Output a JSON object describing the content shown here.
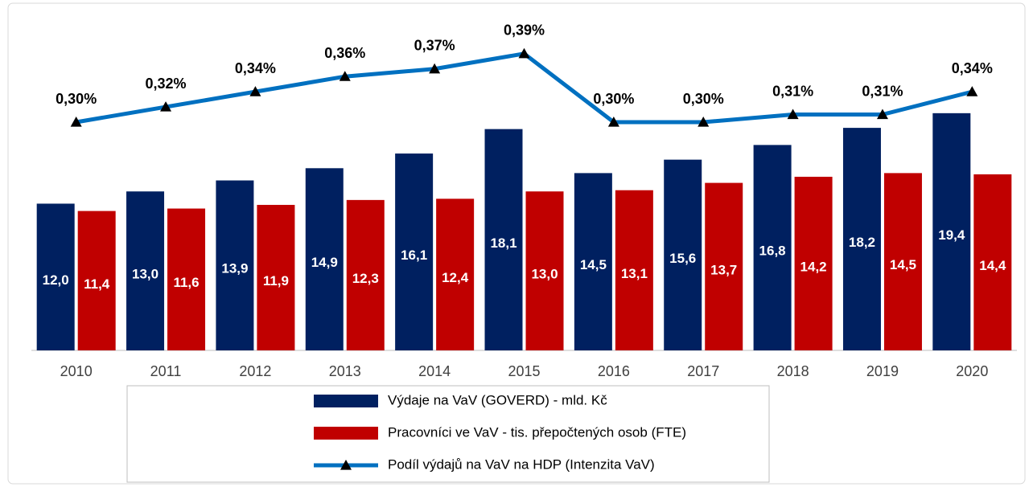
{
  "chart_data": {
    "type": "bar",
    "categories": [
      "2010",
      "2011",
      "2012",
      "2013",
      "2014",
      "2015",
      "2016",
      "2017",
      "2018",
      "2019",
      "2020"
    ],
    "ylim": [
      0,
      28
    ],
    "y2lim": [
      0,
      0.45
    ],
    "series": [
      {
        "name": "Výdaje na VaV (GOVERD) - mld. Kč",
        "color": "#002060",
        "type": "bar",
        "values": [
          12.0,
          13.0,
          13.9,
          14.9,
          16.1,
          18.1,
          14.5,
          15.6,
          16.8,
          18.2,
          19.4
        ],
        "value_labels": [
          "12,0",
          "13,0",
          "13,9",
          "14,9",
          "16,1",
          "18,1",
          "14,5",
          "15,6",
          "16,8",
          "18,2",
          "19,4"
        ]
      },
      {
        "name": "Pracovníci ve VaV - tis. přepočtených osob (FTE)",
        "color": "#c00000",
        "type": "bar",
        "values": [
          11.4,
          11.6,
          11.9,
          12.3,
          12.4,
          13.0,
          13.1,
          13.7,
          14.2,
          14.5,
          14.4
        ],
        "value_labels": [
          "11,4",
          "11,6",
          "11,9",
          "12,3",
          "12,4",
          "13,0",
          "13,1",
          "13,7",
          "14,2",
          "14,5",
          "14,4"
        ]
      },
      {
        "name": "Podíl výdajů na VaV na HDP (Intenzita VaV)",
        "color": "#0070c0",
        "type": "line",
        "axis": "y2",
        "values": [
          0.3,
          0.32,
          0.34,
          0.36,
          0.37,
          0.39,
          0.3,
          0.3,
          0.31,
          0.31,
          0.34
        ],
        "value_labels": [
          "0,30%",
          "0,32%",
          "0,34%",
          "0,36%",
          "0,37%",
          "0,39%",
          "0,30%",
          "0,30%",
          "0,31%",
          "0,31%",
          "0,34%"
        ]
      }
    ],
    "legend": "bottom"
  }
}
